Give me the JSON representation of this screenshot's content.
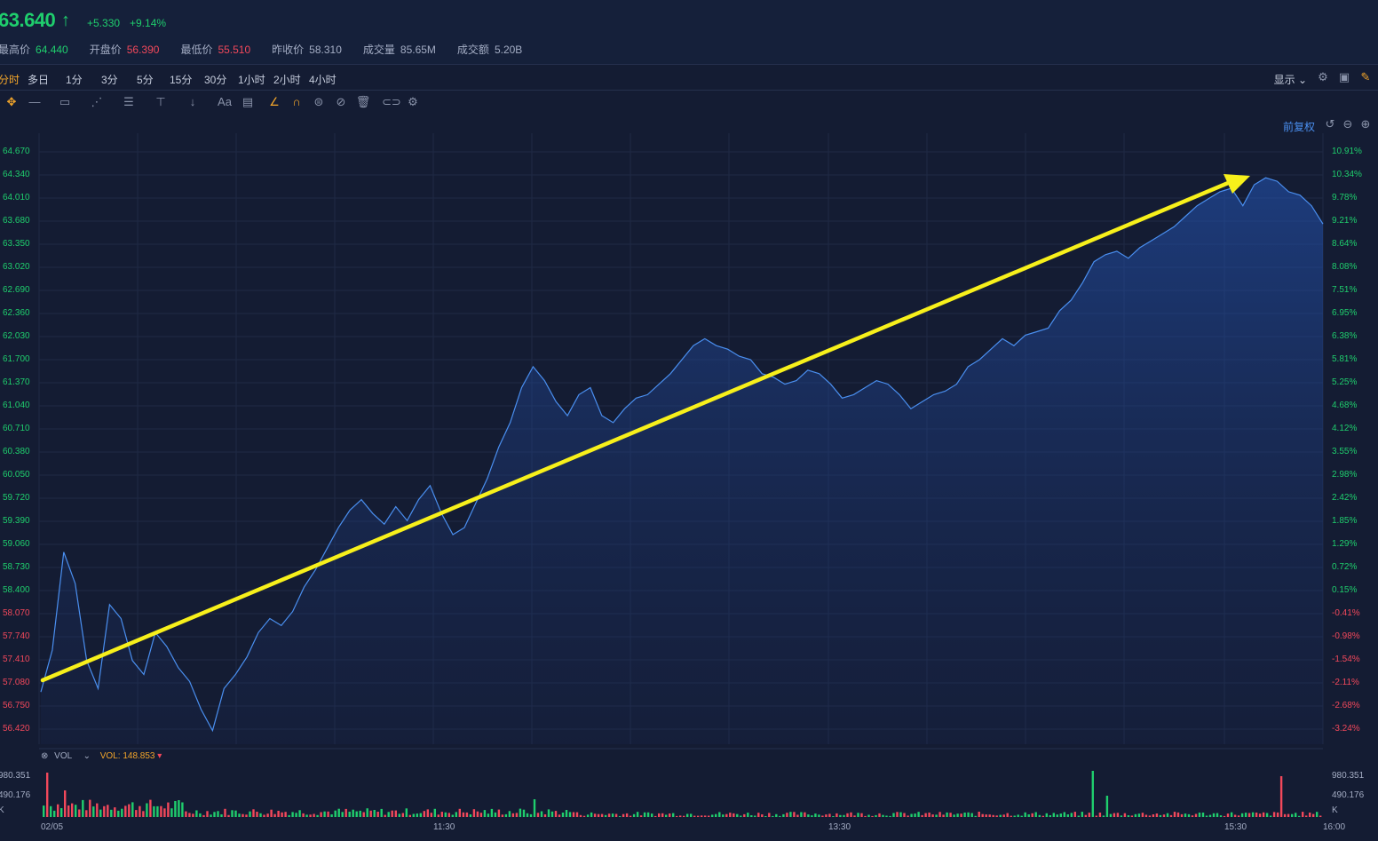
{
  "quote": {
    "price": "63.640",
    "change": "+5.330",
    "change_pct": "+9.14%",
    "stats": [
      {
        "label": "最高价",
        "value": "64.440",
        "tone": "g"
      },
      {
        "label": "开盘价",
        "value": "56.390",
        "tone": "r"
      },
      {
        "label": "最低价",
        "value": "55.510",
        "tone": "r"
      },
      {
        "label": "昨收价",
        "value": "58.310",
        "tone": "w"
      },
      {
        "label": "成交量",
        "value": "85.65M",
        "tone": "w"
      },
      {
        "label": "成交额",
        "value": "5.20B",
        "tone": "w"
      }
    ]
  },
  "tabs": [
    "分时",
    "多日",
    "1分",
    "3分",
    "5分",
    "15分",
    "30分",
    "1小时",
    "2小时",
    "4小时"
  ],
  "active_tab": "分时",
  "toolbar": {
    "display_label": "显示",
    "fq_label": "前复权",
    "icons": [
      "move-icon",
      "line-icon",
      "rect-icon",
      "fib-icon",
      "channel-icon",
      "measure-icon",
      "arrow-down-icon",
      "text-icon",
      "comment-icon",
      "pencil-icon",
      "magnet-icon",
      "lock-icon",
      "hide-icon",
      "trash-icon",
      "link-icon",
      "settings-icon"
    ]
  },
  "chart_data": {
    "type": "line",
    "title": "",
    "x_ticks": [
      "02/05",
      "11:30",
      "13:30",
      "15:30",
      "16:00"
    ],
    "price_ticks": [
      "64.670",
      "64.340",
      "64.010",
      "63.680",
      "63.350",
      "63.020",
      "62.690",
      "62.360",
      "62.030",
      "61.700",
      "61.370",
      "61.040",
      "60.710",
      "60.380",
      "60.050",
      "59.720",
      "59.390",
      "59.060",
      "58.730",
      "58.400",
      "58.070",
      "57.740",
      "57.410",
      "57.080",
      "56.750",
      "56.420"
    ],
    "pct_ticks": [
      "10.91%",
      "10.34%",
      "9.78%",
      "9.21%",
      "8.64%",
      "8.08%",
      "7.51%",
      "6.95%",
      "6.38%",
      "5.81%",
      "5.25%",
      "4.68%",
      "4.12%",
      "3.55%",
      "2.98%",
      "2.42%",
      "1.85%",
      "1.29%",
      "0.72%",
      "0.15%",
      "-0.41%",
      "-0.98%",
      "-1.54%",
      "-2.11%",
      "-2.68%",
      "-3.24%"
    ],
    "ylim": [
      56.42,
      64.67
    ],
    "prev_close": 58.31,
    "price_series": [
      56.95,
      57.55,
      58.95,
      58.5,
      57.4,
      57.0,
      58.2,
      58.0,
      57.4,
      57.2,
      57.8,
      57.6,
      57.3,
      57.1,
      56.7,
      56.4,
      57.0,
      57.2,
      57.45,
      57.8,
      58.0,
      57.9,
      58.1,
      58.45,
      58.7,
      59.0,
      59.3,
      59.55,
      59.7,
      59.5,
      59.35,
      59.6,
      59.4,
      59.7,
      59.9,
      59.5,
      59.2,
      59.3,
      59.65,
      60.0,
      60.45,
      60.8,
      61.3,
      61.6,
      61.4,
      61.1,
      60.9,
      61.2,
      61.3,
      60.9,
      60.8,
      61.0,
      61.15,
      61.2,
      61.35,
      61.5,
      61.7,
      61.9,
      62.0,
      61.9,
      61.85,
      61.75,
      61.7,
      61.5,
      61.45,
      61.35,
      61.4,
      61.55,
      61.5,
      61.35,
      61.15,
      61.2,
      61.3,
      61.4,
      61.35,
      61.2,
      61.0,
      61.1,
      61.2,
      61.25,
      61.35,
      61.6,
      61.7,
      61.85,
      62.0,
      61.9,
      62.05,
      62.1,
      62.15,
      62.4,
      62.55,
      62.8,
      63.1,
      63.2,
      63.25,
      63.15,
      63.3,
      63.4,
      63.5,
      63.6,
      63.75,
      63.9,
      64.0,
      64.1,
      64.15,
      63.9,
      64.2,
      64.3,
      64.25,
      64.1,
      64.05,
      63.9,
      63.64
    ],
    "volume_label": "VOL",
    "volume_value": "VOL: 148.853",
    "volume_ticks": [
      "980.351",
      "490.176",
      "K"
    ]
  },
  "colors": {
    "up": "#1fce6d",
    "down": "#f2485b",
    "line": "#4a8ff0",
    "accent": "#f4a62a",
    "trend": "#f7f01b"
  }
}
